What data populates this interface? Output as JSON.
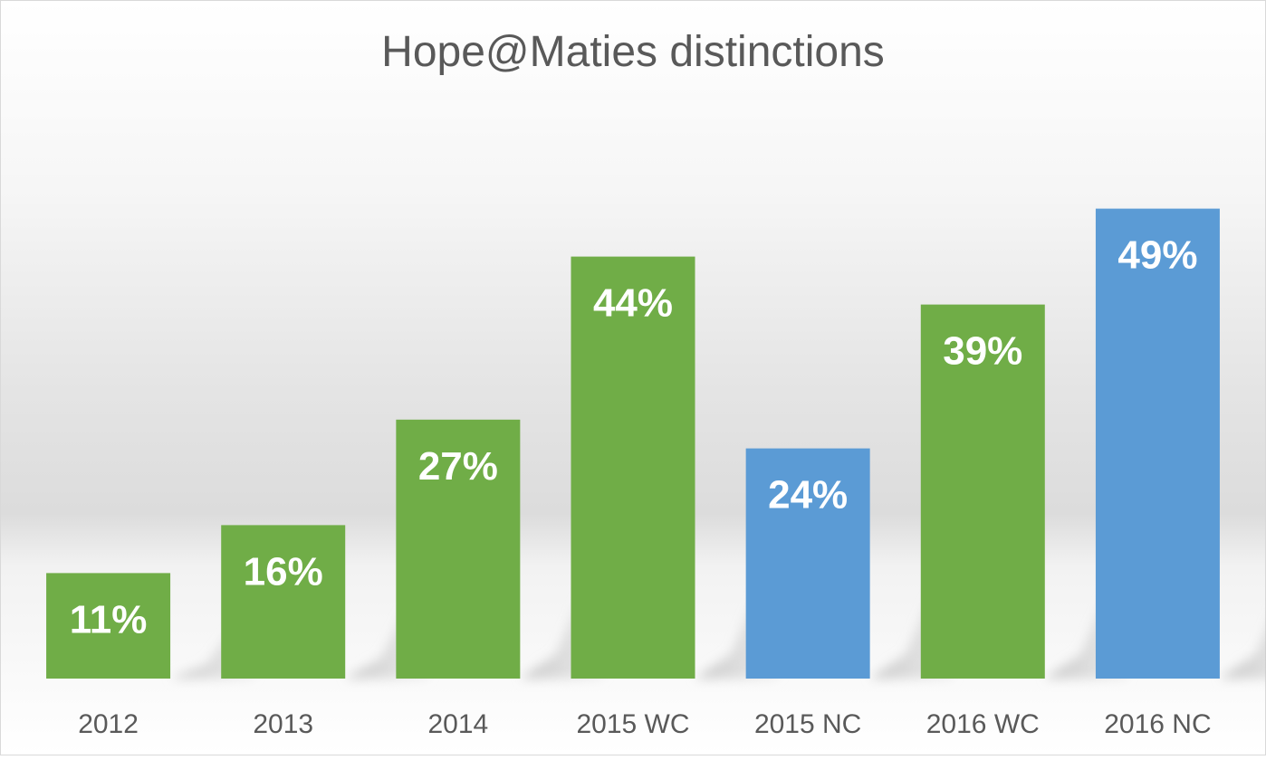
{
  "chart_data": {
    "type": "bar",
    "title": "Hope@Maties distinctions",
    "xlabel": "",
    "ylabel": "",
    "ylim": [
      0,
      60
    ],
    "grid": false,
    "legend": "none",
    "categories": [
      "2012",
      "2013",
      "2014",
      "2015 WC",
      "2015 NC",
      "2016 WC",
      "2016 NC"
    ],
    "values": [
      11,
      16,
      27,
      44,
      24,
      39,
      49
    ],
    "data_labels": [
      "11%",
      "16%",
      "27%",
      "44%",
      "24%",
      "39%",
      "49%"
    ],
    "bar_colors": [
      "#70ad47",
      "#70ad47",
      "#70ad47",
      "#70ad47",
      "#5b9bd5",
      "#70ad47",
      "#5b9bd5"
    ]
  },
  "colors": {
    "title": "#595959",
    "axis_labels": "#595959",
    "data_labels": "#ffffff",
    "border": "#d9d9d9"
  }
}
